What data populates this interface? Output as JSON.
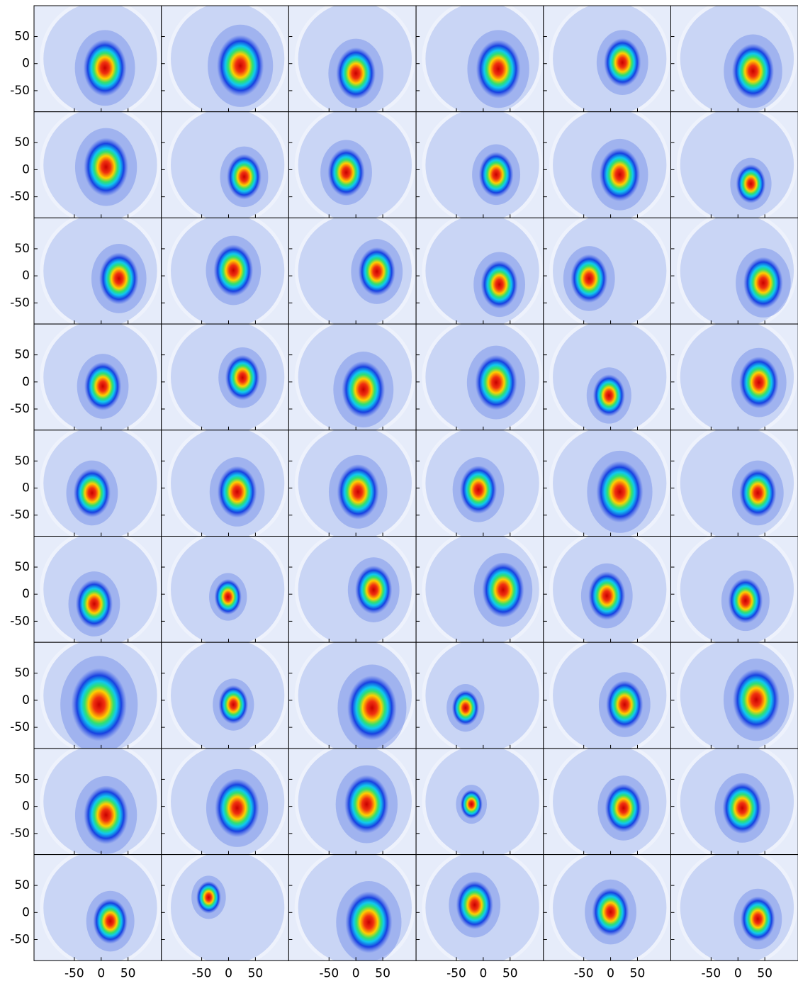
{
  "chart_data": {
    "type": "image",
    "xlim": [
      -125,
      112
    ],
    "ylim": [
      -89,
      107
    ],
    "xticks": [
      -50,
      0,
      50
    ],
    "yticks": [
      -50,
      0,
      50
    ],
    "x": [
      7,
      22,
      0,
      28,
      22,
      28,
      9,
      29,
      -18,
      24,
      17,
      24,
      33,
      9,
      39,
      30,
      -40,
      47,
      3,
      26,
      14,
      24,
      -3,
      39,
      -17,
      16,
      4,
      -9,
      17,
      37,
      -13,
      -1,
      33,
      37,
      -7,
      14,
      -4,
      9,
      30,
      -33,
      26,
      34,
      9,
      16,
      20,
      -22,
      24,
      8,
      17,
      -37,
      24,
      -16,
      0,
      37
    ],
    "y": [
      -8,
      -4,
      -18,
      -10,
      2,
      -14,
      5,
      -13,
      -5,
      -9,
      -9,
      -26,
      -5,
      10,
      8,
      -16,
      -5,
      -13,
      -8,
      8,
      -14,
      -1,
      -25,
      -1,
      -9,
      -7,
      -7,
      -3,
      -7,
      -9,
      -18,
      -5,
      8,
      8,
      -3,
      -12,
      -8,
      -8,
      -14,
      -14,
      -8,
      1,
      -16,
      -3,
      4,
      4,
      -3,
      -3,
      -16,
      28,
      -18,
      14,
      1,
      -12
    ],
    "size": [
      35,
      38,
      32,
      36,
      30,
      34,
      36,
      28,
      30,
      28,
      33,
      24,
      32,
      32,
      30,
      30,
      30,
      32,
      30,
      28,
      35,
      34,
      26,
      32,
      30,
      32,
      34,
      30,
      38,
      30,
      30,
      22,
      30,
      34,
      30,
      28,
      45,
      24,
      40,
      22,
      30,
      38,
      36,
      36,
      36,
      18,
      30,
      32,
      28,
      20,
      38,
      30,
      30,
      28
    ]
  }
}
